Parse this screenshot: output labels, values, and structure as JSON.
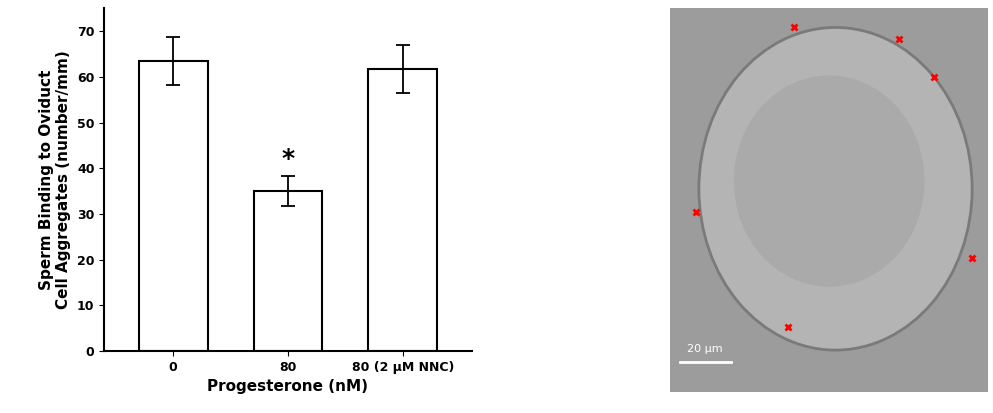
{
  "chart_data": {
    "type": "bar",
    "categories": [
      "0",
      "80",
      "80 (2 μM NNC)"
    ],
    "values": [
      63.5,
      35.0,
      61.7
    ],
    "errors": [
      5.3,
      3.2,
      5.2
    ],
    "color": "#ffffff",
    "x_label": "Progesterone (nM)",
    "y_label": "Sperm Binding to Oviduct\nCell Aggregates (number/mm)",
    "ylim": [
      0,
      75
    ],
    "yticks": [
      0,
      10,
      20,
      30,
      40,
      50,
      60,
      70
    ],
    "annotations": [
      {
        "text": "*",
        "category": "80"
      }
    ],
    "grid": false
  },
  "image": {
    "scale_bar": "20 μm"
  }
}
